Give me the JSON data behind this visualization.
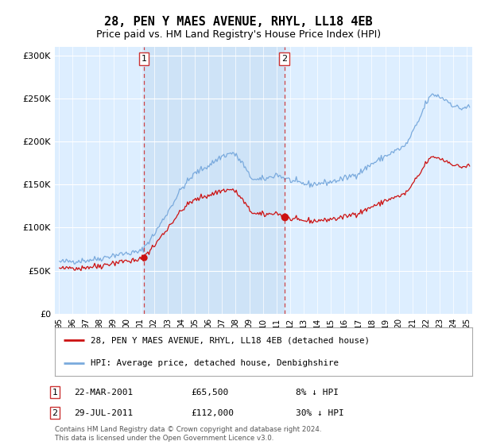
{
  "title": "28, PEN Y MAES AVENUE, RHYL, LL18 4EB",
  "subtitle": "Price paid vs. HM Land Registry's House Price Index (HPI)",
  "hpi_color": "#7aaadd",
  "price_color": "#cc1111",
  "vline_color": "#cc3333",
  "shade_color": "#ddeeff",
  "bg_color": "#ddeeff",
  "sale1_date": "22-MAR-2001",
  "sale1_price": 65500,
  "sale2_date": "29-JUL-2011",
  "sale2_price": 112000,
  "sale1_hpi_note": "8% ↓ HPI",
  "sale2_hpi_note": "30% ↓ HPI",
  "legend_line1": "28, PEN Y MAES AVENUE, RHYL, LL18 4EB (detached house)",
  "legend_line2": "HPI: Average price, detached house, Denbighshire",
  "footnote": "Contains HM Land Registry data © Crown copyright and database right 2024.\nThis data is licensed under the Open Government Licence v3.0.",
  "ylim": [
    0,
    310000
  ],
  "yticks": [
    0,
    50000,
    100000,
    150000,
    200000,
    250000,
    300000
  ],
  "ytick_labels": [
    "£0",
    "£50K",
    "£100K",
    "£150K",
    "£200K",
    "£250K",
    "£300K"
  ]
}
